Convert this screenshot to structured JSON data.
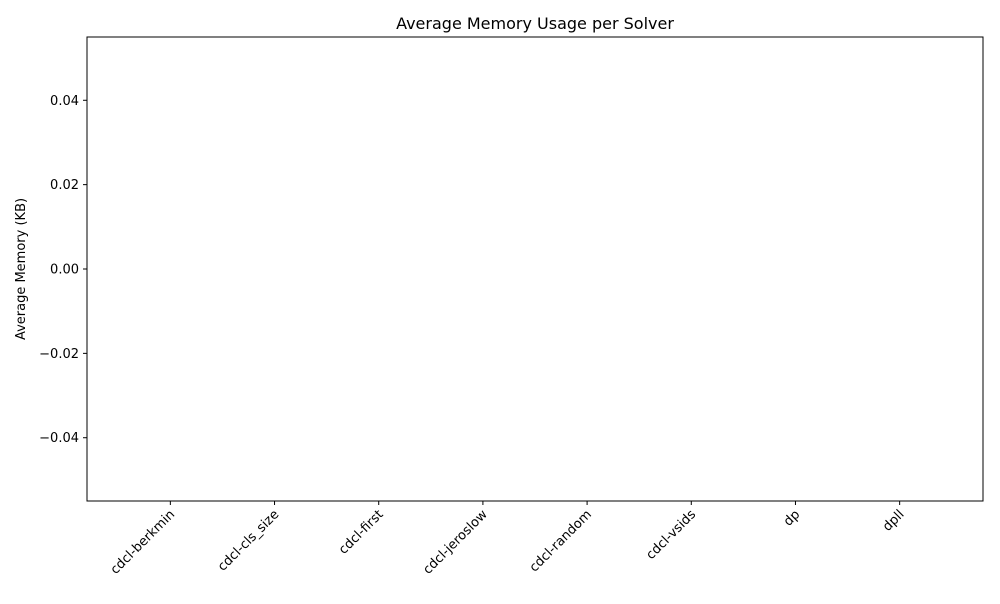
{
  "chart_data": {
    "type": "bar",
    "title": "Average Memory Usage per Solver",
    "xlabel": "",
    "ylabel": "Average Memory (KB)",
    "categories": [
      "cdcl-berkmin",
      "cdcl-cls_size",
      "cdcl-first",
      "cdcl-jeroslow",
      "cdcl-random",
      "cdcl-vsids",
      "dp",
      "dpll"
    ],
    "values": [
      0,
      0,
      0,
      0,
      0,
      0,
      0,
      0
    ],
    "ylim": [
      -0.055,
      0.055
    ],
    "yticks": [
      -0.04,
      -0.02,
      0.0,
      0.02,
      0.04
    ],
    "ytick_labels": [
      "−0.04",
      "−0.02",
      "0.00",
      "0.02",
      "0.04"
    ],
    "grid": false,
    "legend": "none"
  }
}
